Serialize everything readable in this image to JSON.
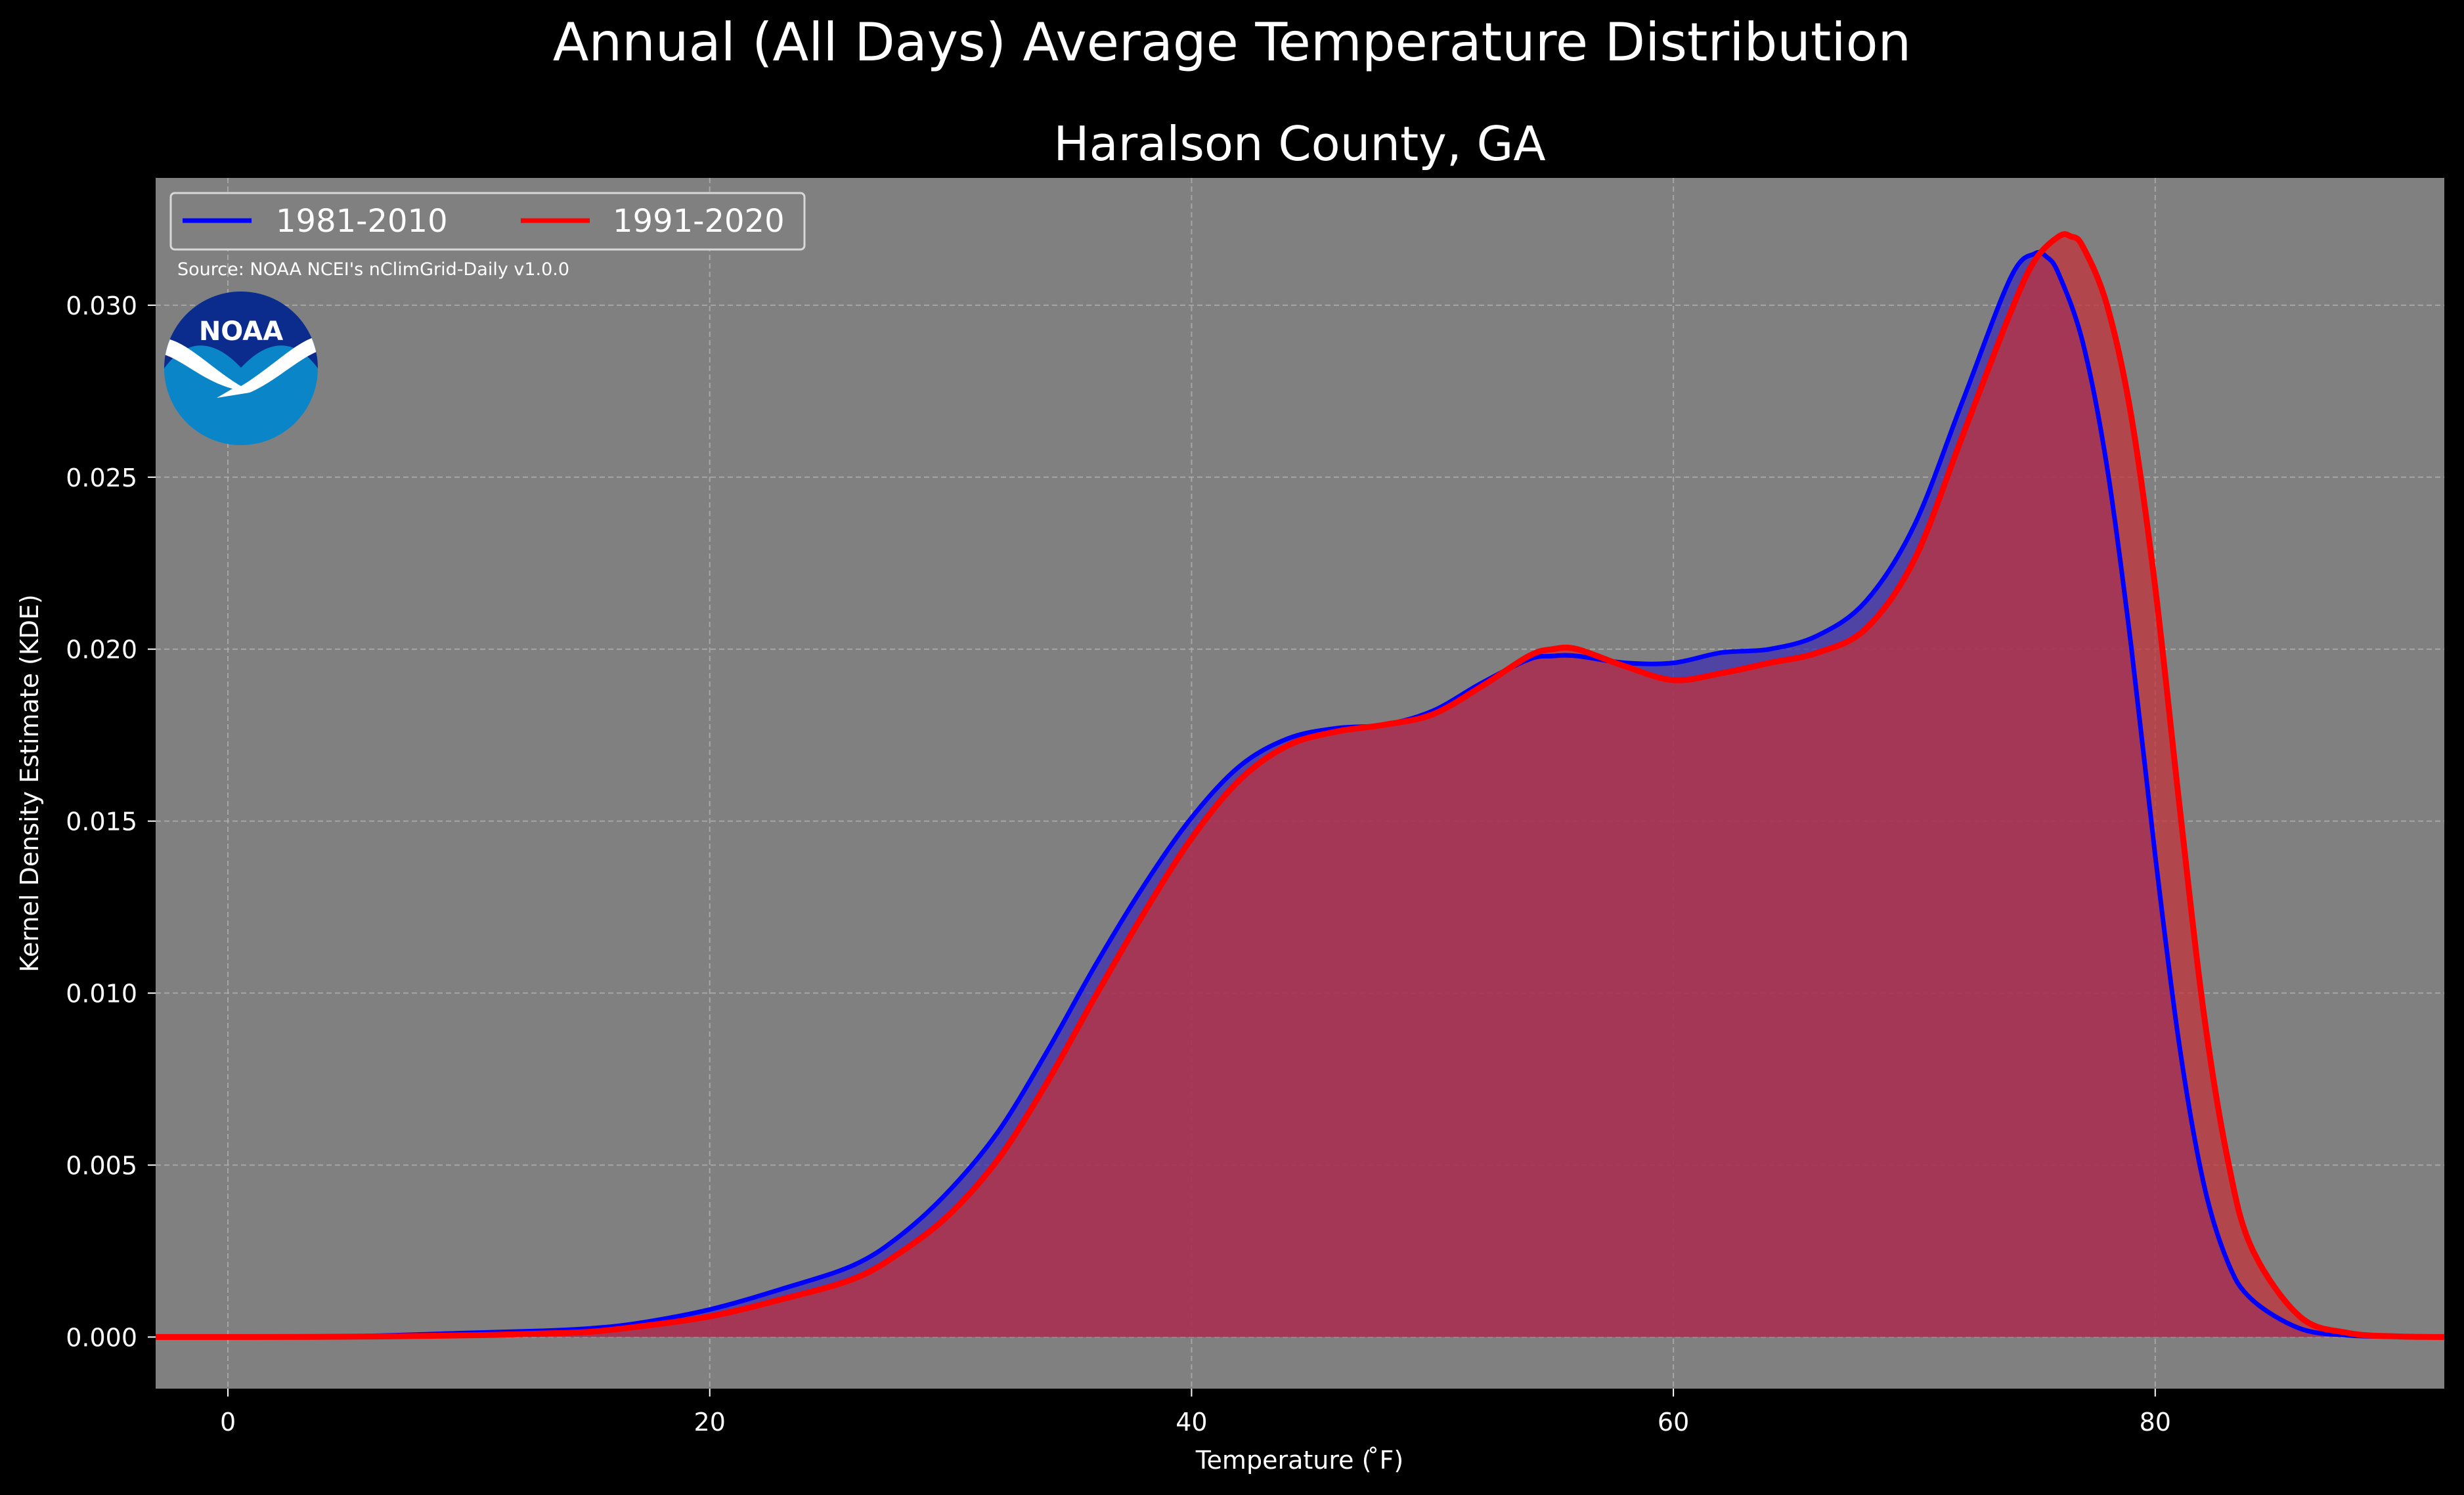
{
  "chart_data": {
    "type": "area",
    "title": "Annual (All Days) Average Temperature Distribution",
    "subtitle": "Haralson County, GA",
    "xlabel": "Temperature ($^\\circ$F)",
    "xlabel_display": "Temperature ( ̊F)",
    "ylabel": "Kernel Density Estimate (KDE)",
    "xlim": [
      -3,
      92
    ],
    "ylim": [
      -0.0015,
      0.0337
    ],
    "xticks": [
      0,
      20,
      40,
      60,
      80
    ],
    "yticks": [
      0.0,
      0.005,
      0.01,
      0.015,
      0.02,
      0.025,
      0.03
    ],
    "ytick_labels": [
      "0.000",
      "0.005",
      "0.010",
      "0.015",
      "0.020",
      "0.025",
      "0.030"
    ],
    "grid": true,
    "legend_position": "top-left",
    "source": "Source: NOAA NCEI's nClimGrid-Daily v1.0.0",
    "logo_text": "NOAA",
    "series": [
      {
        "name": "1981-2010",
        "color": "#0000ff",
        "fill": "#3f2fb0",
        "x": [
          -3,
          0,
          5,
          10,
          13,
          15,
          17,
          20,
          23,
          26,
          28,
          30,
          32,
          34,
          36,
          38,
          40,
          42,
          44,
          46,
          48,
          50,
          52,
          54,
          55,
          56,
          58,
          60,
          62,
          64,
          66,
          68,
          70,
          72,
          74,
          75,
          75.5,
          76,
          77,
          78,
          79,
          80,
          81,
          82,
          83,
          84,
          86,
          88,
          90,
          92
        ],
        "y": [
          0.0,
          0.0,
          2e-05,
          0.00012,
          0.00018,
          0.00025,
          0.0004,
          0.0008,
          0.0014,
          0.0021,
          0.003,
          0.0043,
          0.006,
          0.0083,
          0.0108,
          0.0131,
          0.0151,
          0.0166,
          0.0174,
          0.0177,
          0.0178,
          0.0182,
          0.019,
          0.0197,
          0.0198,
          0.0198,
          0.0196,
          0.0196,
          0.0199,
          0.02,
          0.0204,
          0.0214,
          0.0236,
          0.0272,
          0.0308,
          0.0315,
          0.0314,
          0.0309,
          0.0289,
          0.0253,
          0.0201,
          0.014,
          0.0085,
          0.0045,
          0.0022,
          0.0011,
          0.00025,
          5e-05,
          1e-05,
          0.0
        ]
      },
      {
        "name": "1991-2020",
        "color": "#ff0000",
        "fill": "#c2333c",
        "x": [
          -3,
          0,
          5,
          10,
          13,
          15,
          17,
          20,
          23,
          26,
          28,
          30,
          32,
          34,
          36,
          38,
          40,
          42,
          44,
          46,
          48,
          50,
          52,
          54,
          55,
          56,
          58,
          60,
          62,
          64,
          66,
          68,
          70,
          72,
          74,
          75,
          76,
          76.5,
          77,
          78,
          79,
          80,
          81,
          82,
          83,
          84,
          86,
          88,
          90,
          92
        ],
        "y": [
          0.0,
          0.0,
          1e-05,
          5e-05,
          0.0001,
          0.00015,
          0.0003,
          0.0006,
          0.0011,
          0.0017,
          0.0025,
          0.0036,
          0.0052,
          0.0074,
          0.0099,
          0.0123,
          0.0145,
          0.0162,
          0.0172,
          0.0176,
          0.0178,
          0.0181,
          0.0189,
          0.0198,
          0.02,
          0.02,
          0.0195,
          0.0191,
          0.0193,
          0.0196,
          0.0199,
          0.0206,
          0.0226,
          0.0262,
          0.0298,
          0.0313,
          0.032,
          0.032,
          0.0317,
          0.03,
          0.0268,
          0.0218,
          0.0155,
          0.0095,
          0.0052,
          0.0026,
          0.0006,
          0.00012,
          2e-05,
          0.0
        ]
      }
    ]
  }
}
